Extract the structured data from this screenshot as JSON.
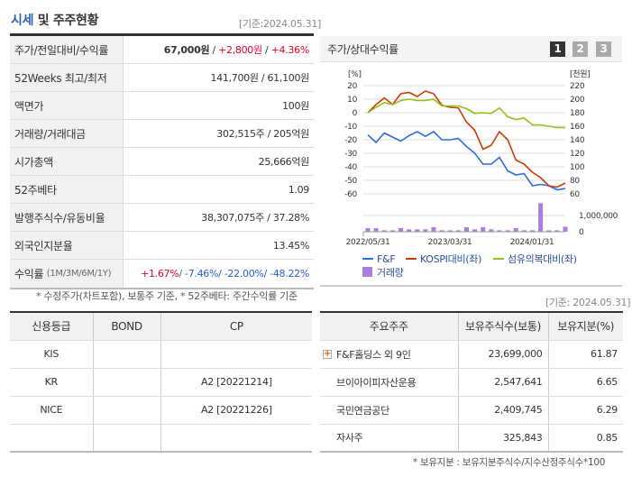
{
  "header": {
    "title_highlight": "시세",
    "title_rest": " 및 주주현황",
    "date": "[기준:2024.05.31]"
  },
  "price_table": [
    {
      "label": "주가/전일대비/수익률",
      "price": "67,000원",
      "sep": " / ",
      "change": "+2,800원",
      "sep2": " / ",
      "rate": "+4.36%"
    },
    {
      "label": "52Weeks 최고/최저",
      "value": "141,700원 / 61,100원"
    },
    {
      "label": "액면가",
      "value": "100원"
    },
    {
      "label": "거래량/거래대금",
      "value": "302,515주 / 205억원"
    },
    {
      "label": "시가총액",
      "value": "25,666억원"
    },
    {
      "label": "52주베타",
      "value": "1.09"
    },
    {
      "label": "발행주식수/유동비율",
      "value": "38,307,075주 / 37.28%"
    },
    {
      "label": "외국인지분율",
      "value": "13.45%"
    },
    {
      "label": "수익률",
      "label_sub": "(1M/3M/6M/1Y)",
      "r1": "+1.67%",
      "r2": "/ -7.46%",
      "r3": "/ -22.00%",
      "r4": "/ -48.22%"
    }
  ],
  "price_note": "* 수정주가(차트포함), 보통주 기준, * 52주베타: 주간수익률 기준",
  "chart_panel": {
    "title": "주가/상대수익률",
    "buttons": [
      "1",
      "2",
      "3"
    ],
    "active_button": "1",
    "active_color": "#333333",
    "inactive_color": "#aaaaaa"
  },
  "chart_data": {
    "type": "line",
    "left_unit": "[%]",
    "right_unit": "[천원]",
    "ylim": [
      -60,
      20
    ],
    "yticks": [
      "20",
      "10",
      "0",
      "-10",
      "-20",
      "-30",
      "-40",
      "-50",
      "-60"
    ],
    "y2ticks": [
      "220",
      "200",
      "180",
      "160",
      "140",
      "120",
      "100",
      "80",
      "60"
    ],
    "volume_ticks": [
      "1,000,000",
      "0"
    ],
    "xtick_labels": [
      "2022/05/31",
      "2023/03/31",
      "2024/01/31"
    ],
    "grid": true,
    "legend": "bottom",
    "series": [
      {
        "name": "F&F",
        "color": "#2a6fdb",
        "values": [
          -16.4,
          -22,
          -15,
          -18,
          -21,
          -17,
          -14,
          -17.5,
          -14,
          -20,
          -20,
          -19,
          -25,
          -30,
          -38,
          -38,
          -33,
          -43,
          -46,
          -45,
          -54,
          -53,
          -54,
          -57,
          -56
        ]
      },
      {
        "name": "KOSPI대비(좌)",
        "color": "#d03a0a",
        "values": [
          0,
          6,
          11,
          6,
          14,
          15,
          12,
          16,
          14,
          5.5,
          4,
          3.5,
          -7,
          -13,
          -27,
          -24,
          -14,
          -20,
          -35,
          -38,
          -44,
          -48,
          -54,
          -55,
          -52
        ]
      },
      {
        "name": "섬유의복대비(좌)",
        "color": "#8cc21a",
        "values": [
          0,
          4,
          7.5,
          6,
          9,
          10,
          9,
          9,
          10,
          5,
          5,
          5,
          3,
          -0.5,
          0,
          -0.5,
          3.5,
          -3,
          -5,
          -4,
          -9,
          -9,
          -10,
          -11,
          -11
        ]
      }
    ],
    "volume": {
      "name": "거래량",
      "color": "#a97fdc",
      "values": [
        220000,
        220000,
        90000,
        90000,
        220000,
        150000,
        150000,
        150000,
        280000,
        90000,
        90000,
        90000,
        280000,
        150000,
        280000,
        150000,
        90000,
        90000,
        220000,
        90000,
        90000,
        1760000,
        90000,
        90000,
        310000
      ]
    }
  },
  "credit_table": {
    "headers": [
      "신용등급",
      "BOND",
      "CP"
    ],
    "rows": [
      [
        "KIS",
        "",
        ""
      ],
      [
        "KR",
        "",
        "A2 [20221214]"
      ],
      [
        "NICE",
        "",
        "A2 [20221226]"
      ],
      [
        "",
        "",
        ""
      ]
    ]
  },
  "holders": {
    "date": "[기준: 2024.05.31]",
    "headers": [
      "주요주주",
      "보유주식수(보통)",
      "보유지분(%)"
    ],
    "rows": [
      [
        "F&F홀딩스 외 9인",
        "23,699,000",
        "61.87"
      ],
      [
        "브이아이피자산운용",
        "2,547,641",
        "6.65"
      ],
      [
        "국민연금공단",
        "2,409,745",
        "6.29"
      ],
      [
        "자사주",
        "325,843",
        "0.85"
      ]
    ],
    "note": "* 보유지분 : 보유지분주식수/지수산정주식수*100"
  }
}
